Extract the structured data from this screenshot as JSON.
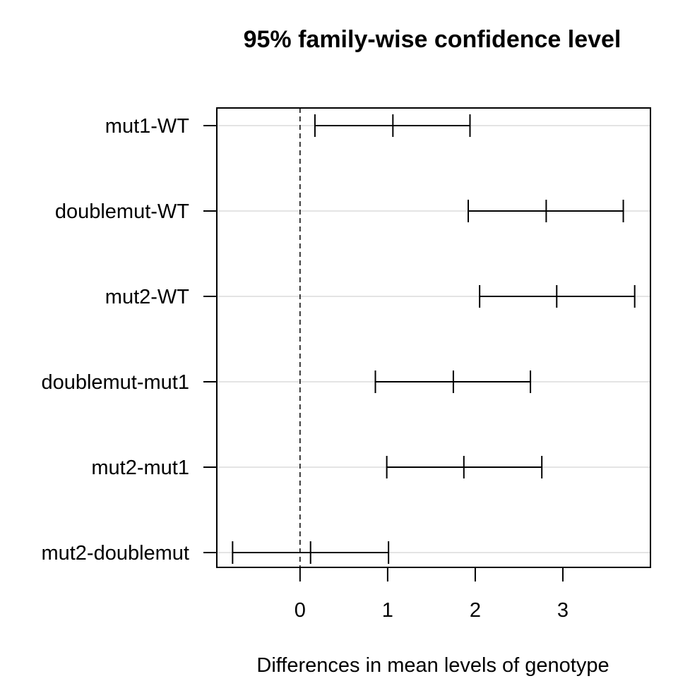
{
  "chart_data": {
    "type": "errorbar",
    "title": "95% family-wise confidence level",
    "xlabel": "Differences in mean levels of genotype",
    "ylabel": "",
    "xlim": [
      -0.95,
      4.0
    ],
    "x_ticks": [
      0,
      1,
      2,
      3
    ],
    "reference_line": 0,
    "grid": true,
    "comparisons": [
      {
        "label": "mut1-WT",
        "estimate": 1.06,
        "lower": 0.17,
        "upper": 1.94
      },
      {
        "label": "doublemut-WT",
        "estimate": 2.81,
        "lower": 1.92,
        "upper": 3.69
      },
      {
        "label": "mut2-WT",
        "estimate": 2.93,
        "lower": 2.05,
        "upper": 3.82
      },
      {
        "label": "doublemut-mut1",
        "estimate": 1.75,
        "lower": 0.86,
        "upper": 2.63
      },
      {
        "label": "mut2-mut1",
        "estimate": 1.87,
        "lower": 0.99,
        "upper": 2.76
      },
      {
        "label": "mut2-doublemut",
        "estimate": 0.12,
        "lower": -0.77,
        "upper": 1.01
      }
    ]
  }
}
